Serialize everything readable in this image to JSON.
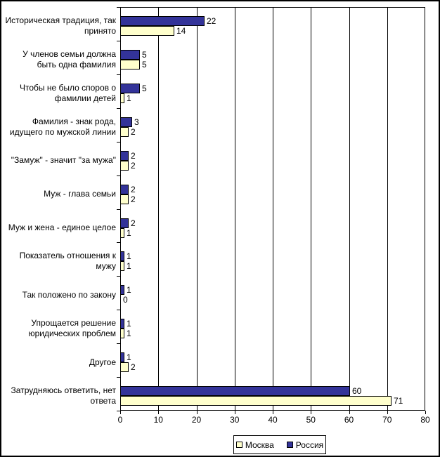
{
  "chart_data": {
    "type": "bar",
    "orientation": "horizontal",
    "title": "",
    "xlabel": "",
    "ylabel": "",
    "xlim": [
      0,
      80
    ],
    "x_ticks": [
      0,
      10,
      20,
      30,
      40,
      50,
      60,
      70,
      80
    ],
    "grid": true,
    "legend_position": "bottom",
    "row_order_within_category": [
      "Россия",
      "Москва"
    ],
    "categories": [
      "Историческая традиция, так принято",
      "У членов семьи должна быть одна фамилия",
      "Чтобы не было споров о фамилии детей",
      "Фамилия - знак рода, идущего по мужской линии",
      "\"Замуж\" - значит \"за мужа\"",
      "Муж - глава семьи",
      "Муж и жена - единое целое",
      "Показатель отношения к мужу",
      "Так положено по закону",
      "Упрощается решение юридических проблем",
      "Другое",
      "Затрудняюсь ответить, нет ответа"
    ],
    "series": [
      {
        "name": "Москва",
        "color": "#FFFFCC",
        "values": [
          14,
          5,
          1,
          2,
          2,
          2,
          1,
          1,
          0,
          1,
          2,
          71
        ]
      },
      {
        "name": "Россия",
        "color": "#333399",
        "values": [
          22,
          5,
          5,
          3,
          2,
          2,
          2,
          1,
          1,
          1,
          1,
          60
        ]
      }
    ]
  }
}
